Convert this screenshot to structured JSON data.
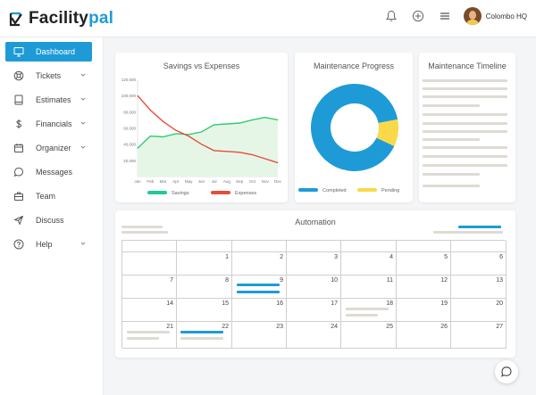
{
  "brand": {
    "name_prefix": "Facility",
    "name_suffix": "pal",
    "accent": "#1e9bd7"
  },
  "header": {
    "user_name": "Colombo HQ",
    "icons": [
      "bell-icon",
      "add-circle-icon",
      "menu-icon"
    ]
  },
  "sidebar": {
    "items": [
      {
        "label": "Dashboard",
        "icon": "monitor-icon",
        "active": true,
        "has_children": false
      },
      {
        "label": "Tickets",
        "icon": "lifebuoy-icon",
        "active": false,
        "has_children": true
      },
      {
        "label": "Estimates",
        "icon": "book-icon",
        "active": false,
        "has_children": true
      },
      {
        "label": "Financials",
        "icon": "dollar-icon",
        "active": false,
        "has_children": true
      },
      {
        "label": "Organizer",
        "icon": "calendar-icon",
        "active": false,
        "has_children": true
      },
      {
        "label": "Messages",
        "icon": "chat-icon",
        "active": false,
        "has_children": false
      },
      {
        "label": "Team",
        "icon": "briefcase-icon",
        "active": false,
        "has_children": false
      },
      {
        "label": "Discuss",
        "icon": "send-icon",
        "active": false,
        "has_children": false
      },
      {
        "label": "Help",
        "icon": "help-icon",
        "active": false,
        "has_children": true
      }
    ]
  },
  "cards": {
    "savings_title": "Savings vs Expenses",
    "maintenance_title": "Maintenance Progress",
    "timeline_title": "Maintenance Timeline",
    "automation_title": "Automation"
  },
  "chart_data": [
    {
      "type": "area",
      "title": "Savings vs Expenses",
      "categories": [
        "Jan",
        "Feb",
        "Mar",
        "Apr",
        "May",
        "Jun",
        "Jul",
        "Aug",
        "Sep",
        "Oct",
        "Nov",
        "Dec"
      ],
      "ylim": [
        0,
        120000
      ],
      "y_ticks": [
        "20,000",
        "40,000",
        "60,000",
        "80,000",
        "100,000",
        "120,000"
      ],
      "legend_position": "bottom",
      "series": [
        {
          "name": "Savings",
          "color": "#2ecc71",
          "values": [
            35000,
            50000,
            49000,
            53000,
            52000,
            55000,
            64000,
            65000,
            66000,
            70000,
            73000,
            70000
          ]
        },
        {
          "name": "Expenses",
          "color": "#e74c3c",
          "values": [
            100000,
            82000,
            68000,
            57000,
            50000,
            40000,
            32000,
            31000,
            30000,
            27000,
            22000,
            17000
          ]
        }
      ]
    },
    {
      "type": "pie",
      "title": "Maintenance Progress",
      "donut": true,
      "legend_position": "bottom",
      "categories": [
        "Completed",
        "Pending"
      ],
      "values": [
        90,
        10
      ],
      "colors": [
        "#1e9bd7",
        "#f9d94a"
      ]
    }
  ],
  "calendar": {
    "weeks": [
      [
        null,
        null,
        1,
        2,
        3,
        4,
        5,
        6
      ],
      [
        7,
        8,
        9,
        10,
        11,
        12,
        13
      ],
      [
        14,
        15,
        16,
        17,
        18,
        19,
        20
      ],
      [
        21,
        22,
        23,
        24,
        25,
        26,
        27
      ]
    ]
  }
}
